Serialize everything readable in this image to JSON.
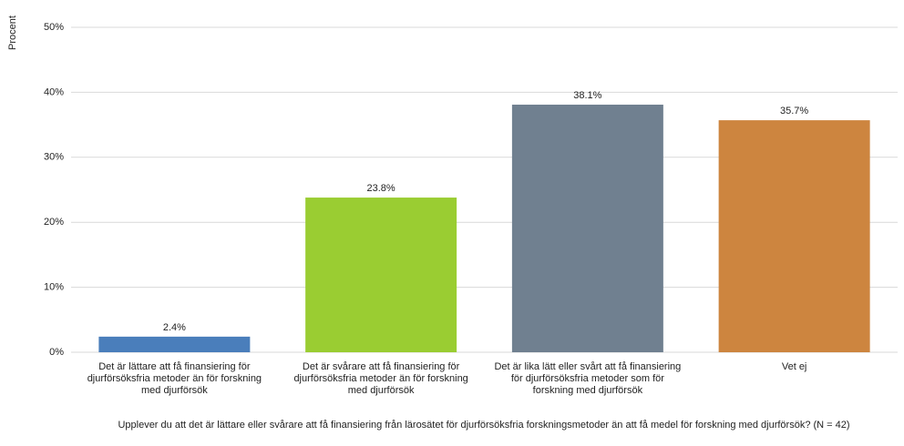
{
  "chart_data": {
    "type": "bar",
    "y_label": "Procent",
    "x_label": "Upplever du att det är lättare eller svårare att få finansiering från lärosätet för djurförsöksfria forskningsmetoder än att få medel för forskning med djurförsök?  (N = 42)",
    "categories": [
      "Det är lättare att få finansiering för djurförsöksfria metoder än för forskning med djurförsök",
      "Det är svårare att få finansiering för djurförsöksfria metoder än för forskning med djurförsök",
      "Det är lika lätt eller svårt att få finansiering för djurförsöksfria metoder som för forskning med djurförsök",
      "Vet ej"
    ],
    "values": [
      2.4,
      23.8,
      38.1,
      35.7
    ],
    "value_labels": [
      "2.4%",
      "23.8%",
      "38.1%",
      "35.7%"
    ],
    "colors": [
      "#4a7ebb",
      "#9acd32",
      "#708090",
      "#cd853f"
    ],
    "ylim": [
      0,
      50
    ],
    "yticks": [
      {
        "value": 0,
        "label": "0%"
      },
      {
        "value": 10,
        "label": "10%"
      },
      {
        "value": 20,
        "label": "20%"
      },
      {
        "value": 30,
        "label": "30%"
      },
      {
        "value": 40,
        "label": "40%"
      },
      {
        "value": 50,
        "label": "50%"
      }
    ],
    "grid": true
  }
}
